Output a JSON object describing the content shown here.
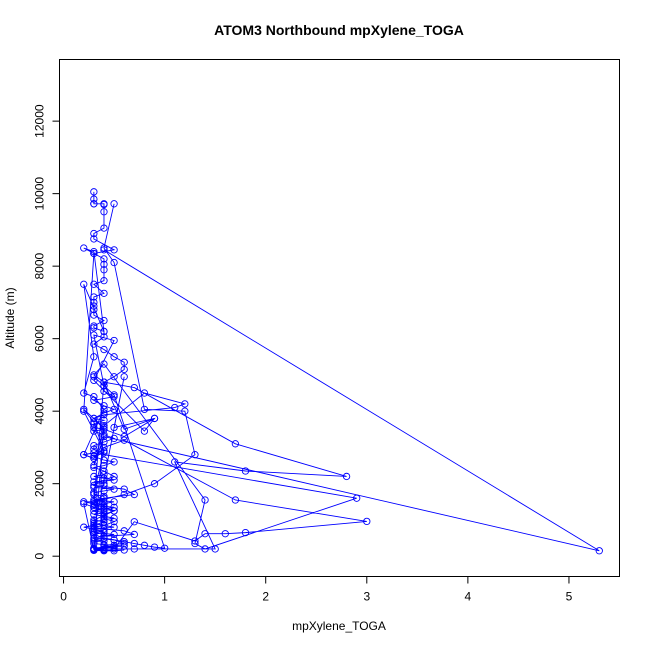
{
  "chart_data": {
    "type": "line",
    "title": "ATOM3 Northbound mpXylene_TOGA",
    "xlabel": "mpXylene_TOGA",
    "ylabel": "Altitude (m)",
    "xlim": [
      -0.04,
      5.5
    ],
    "ylim": [
      -560,
      13700
    ],
    "xticks": [
      0,
      1,
      2,
      3,
      4,
      5
    ],
    "xtick_labels": [
      "0",
      "1",
      "2",
      "3",
      "4",
      "5"
    ],
    "yticks": [
      0,
      2000,
      4000,
      6000,
      8000,
      10000,
      12000
    ],
    "ytick_labels": [
      "0",
      "2000",
      "4000",
      "6000",
      "8000",
      "10000",
      "12000"
    ],
    "grid": false,
    "marker": "open-circle",
    "color": "#0000ff",
    "series": [
      {
        "x": [
          0.3,
          0.3,
          0.3,
          0.3,
          0.4,
          0.4,
          0.4,
          0.4,
          0.3,
          0.3,
          0.5,
          0.3,
          0.4,
          0.4,
          0.4,
          0.4,
          0.3,
          0.4,
          0.3,
          0.3,
          0.3,
          0.3,
          0.3,
          0.4,
          0.3,
          0.3,
          0.4,
          0.4,
          0.3,
          0.4,
          0.5,
          0.6,
          0.6,
          0.5,
          0.4,
          0.4,
          0.4,
          0.5,
          0.3,
          0.4,
          0.5,
          0.4,
          0.3,
          0.4,
          0.3,
          0.3,
          0.4,
          0.3,
          0.4,
          0.5,
          0.4,
          0.3,
          0.3,
          0.4,
          0.3,
          0.4,
          0.5,
          0.4,
          0.3,
          0.4,
          0.5,
          0.4,
          0.3,
          0.6,
          0.7,
          0.4,
          0.3,
          0.4,
          0.3,
          0.5,
          0.4,
          0.4,
          0.5,
          0.4,
          0.3,
          0.4,
          0.6,
          0.7,
          0.4,
          0.3,
          0.5,
          0.6,
          0.4,
          0.5,
          0.3,
          0.4,
          0.3,
          0.4,
          0.5,
          0.6,
          0.4,
          0.3,
          0.4,
          0.3,
          0.4,
          0.6,
          0.5,
          0.4,
          0.3,
          0.3,
          0.4,
          0.3,
          0.4,
          0.4,
          0.5,
          0.3,
          0.4,
          0.3,
          0.5,
          0.4,
          0.3,
          0.3,
          0.4,
          0.5,
          0.4,
          0.3,
          0.4,
          0.3,
          0.4,
          0.5,
          0.3,
          0.4,
          0.5,
          0.3,
          0.4,
          0.4,
          0.3,
          0.3,
          0.4,
          0.5,
          0.3,
          0.4,
          0.4,
          0.3,
          0.5,
          0.4,
          0.3,
          0.4
        ],
        "y": [
          10050,
          9850,
          9720,
          9720,
          9720,
          9700,
          9500,
          9050,
          8900,
          8750,
          8450,
          8350,
          8200,
          8050,
          7900,
          7600,
          7500,
          7250,
          7150,
          7000,
          6900,
          6800,
          6650,
          6500,
          6350,
          6300,
          6200,
          6050,
          5850,
          5700,
          5500,
          5350,
          5150,
          4950,
          4800,
          4700,
          4550,
          4400,
          4300,
          4150,
          4050,
          3950,
          3800,
          3750,
          3650,
          3550,
          3500,
          3450,
          3350,
          3250,
          3150,
          3050,
          2950,
          2850,
          2750,
          2650,
          2600,
          2500,
          2450,
          2350,
          2200,
          2100,
          1950,
          1850,
          1700,
          1600,
          1500,
          1400,
          1350,
          1250,
          1150,
          1050,
          950,
          850,
          800,
          750,
          700,
          600,
          550,
          500,
          450,
          350,
          300,
          250,
          200,
          180,
          160,
          150,
          150,
          170,
          160,
          190,
          200,
          220,
          250,
          280,
          300,
          320,
          350,
          400,
          420,
          450,
          500,
          550,
          600,
          650,
          700,
          750,
          800,
          850,
          900,
          950,
          1000,
          1050,
          1100,
          1150,
          1200,
          1250,
          1300,
          1350,
          1400,
          1450,
          1500,
          1550,
          1600,
          1650,
          1700,
          1750,
          1800,
          1850,
          1900,
          1950,
          2000,
          2050,
          2100,
          2150,
          2200,
          2250
        ]
      },
      {
        "x": [
          0.5,
          0.4,
          0.5,
          0.8,
          1.2,
          1.3,
          0.9,
          0.6,
          0.3,
          0.4,
          0.7,
          1.7,
          2.8,
          1.8,
          1.1,
          1.5,
          0.7,
          0.4,
          0.3,
          0.4,
          0.8,
          1.2,
          1.1,
          0.4,
          0.3,
          0.4,
          0.6,
          0.9,
          0.6,
          0.4,
          0.3,
          0.4,
          1.4,
          1.3,
          1.4,
          2.9,
          0.3,
          0.2,
          0.3,
          0.4,
          0.6,
          1.7,
          3.0,
          1.8,
          1.6,
          1.4,
          1.3,
          0.7,
          0.5,
          0.3,
          0.2,
          0.3,
          0.4
        ],
        "y": [
          9720,
          8500,
          8100,
          4050,
          4000,
          2800,
          2000,
          1700,
          1500,
          4800,
          4650,
          3100,
          2200,
          2350,
          2600,
          200,
          200,
          200,
          180,
          3600,
          4500,
          4200,
          4100,
          3900,
          3800,
          3500,
          3300,
          3800,
          3500,
          4800,
          5000,
          5300,
          1550,
          350,
          200,
          1600,
          2850,
          2800,
          2700,
          3000,
          3200,
          1550,
          960,
          650,
          620,
          620,
          420,
          950,
          200,
          180,
          1450,
          1350,
          1250
        ]
      },
      {
        "x": [
          0.4,
          5.3,
          0.4,
          0.3,
          0.4,
          0.2,
          0.3,
          0.4,
          0.2,
          0.3,
          0.2,
          0.3,
          0.4,
          0.2,
          0.3,
          0.2,
          0.3,
          0.4,
          0.2,
          0.3,
          0.4,
          0.3,
          0.4,
          0.2,
          0.3,
          0.4,
          0.5,
          0.3,
          0.4,
          0.3,
          0.2,
          0.3,
          0.4,
          0.3,
          0.4,
          0.5,
          0.6,
          0.7,
          0.8,
          0.9,
          1.0,
          0.5,
          0.3,
          0.4,
          0.3,
          0.5,
          0.3,
          0.8,
          0.9,
          0.5,
          0.6,
          0.3
        ],
        "y": [
          8450,
          150,
          3300,
          2500,
          3550,
          4050,
          3700,
          2900,
          4000,
          8350,
          8500,
          8400,
          6200,
          7500,
          5500,
          4500,
          4400,
          4050,
          2800,
          2700,
          2900,
          1750,
          1500,
          1500,
          1450,
          1350,
          1250,
          1000,
          950,
          850,
          800,
          750,
          650,
          600,
          500,
          450,
          400,
          350,
          300,
          250,
          220,
          4450,
          4950,
          4700,
          6100,
          5950,
          4850,
          3450,
          3800,
          3550,
          4950,
          700
        ]
      }
    ]
  }
}
